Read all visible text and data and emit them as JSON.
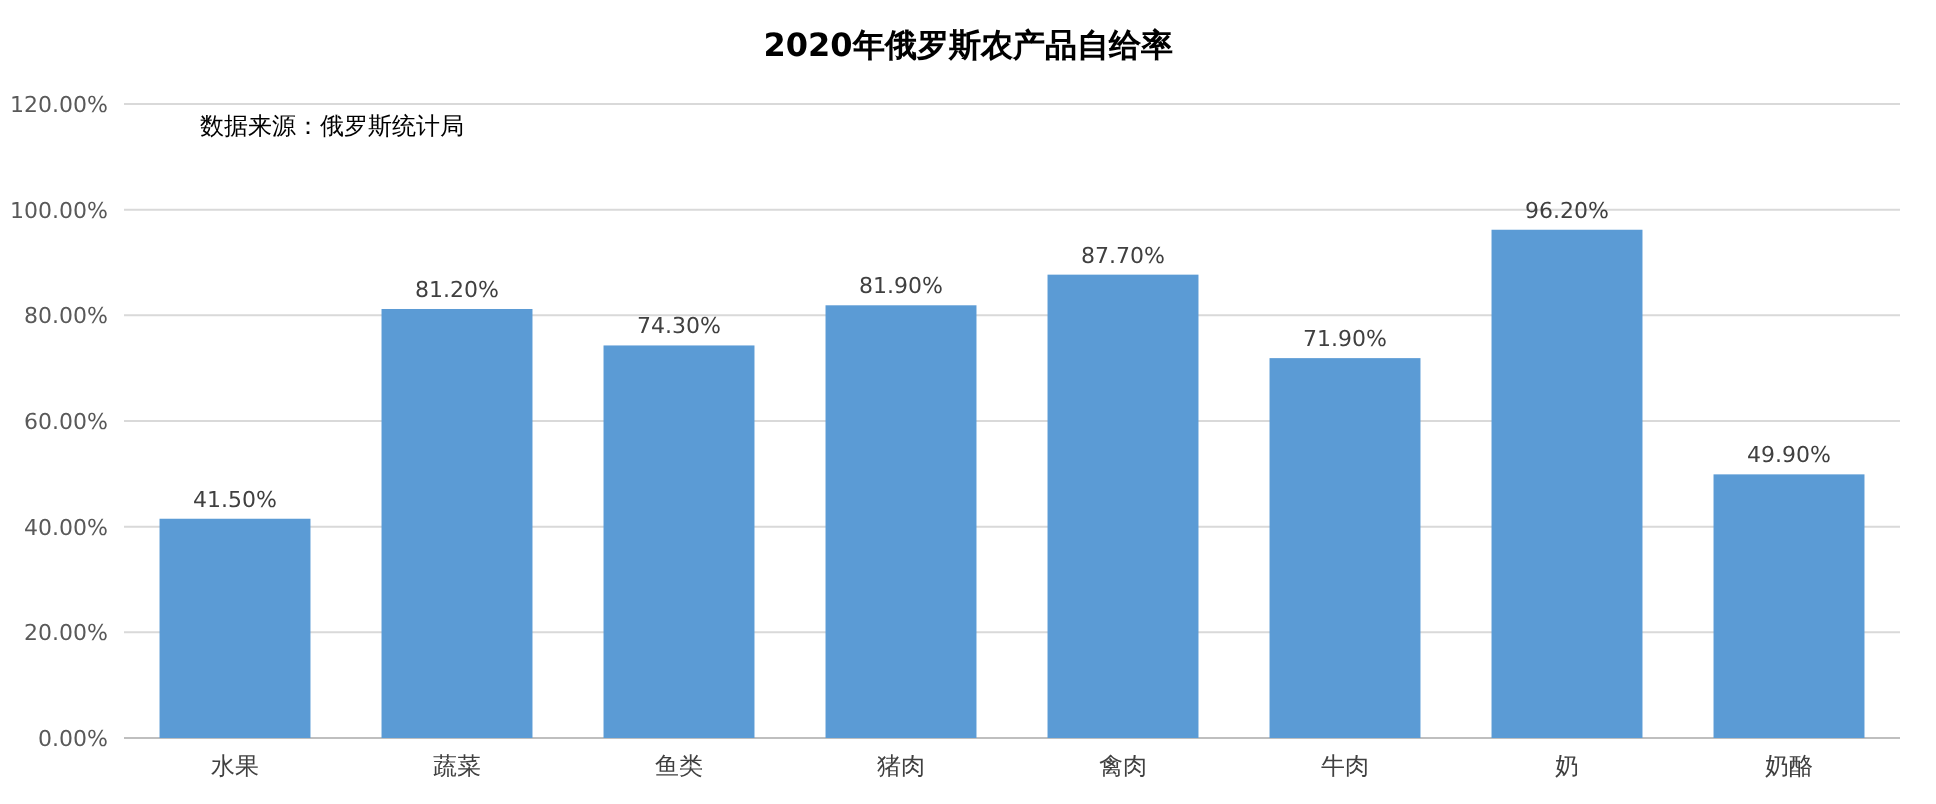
{
  "chart_data": {
    "type": "bar",
    "title": "2020年俄罗斯农产品自给率",
    "categories": [
      "水果",
      "蔬菜",
      "鱼类",
      "猪肉",
      "禽肉",
      "牛肉",
      "奶",
      "奶酪"
    ],
    "values": [
      41.5,
      81.2,
      74.3,
      81.9,
      87.7,
      71.9,
      96.2,
      49.9
    ],
    "value_labels": [
      "41.50%",
      "81.20%",
      "74.30%",
      "81.90%",
      "87.70%",
      "71.90%",
      "96.20%",
      "49.90%"
    ],
    "color": "#5b9bd5",
    "ylim": [
      0,
      120
    ],
    "yticks": [
      {
        "value": 0,
        "label": "0.00%"
      },
      {
        "value": 20,
        "label": "20.00%"
      },
      {
        "value": 40,
        "label": "40.00%"
      },
      {
        "value": 60,
        "label": "60.00%"
      },
      {
        "value": 80,
        "label": "80.00%"
      },
      {
        "value": 100,
        "label": "100.00%"
      },
      {
        "value": 120,
        "label": "120.00%"
      }
    ],
    "grid": "y",
    "annotations": [
      "数据来源：俄罗斯统计局"
    ]
  }
}
